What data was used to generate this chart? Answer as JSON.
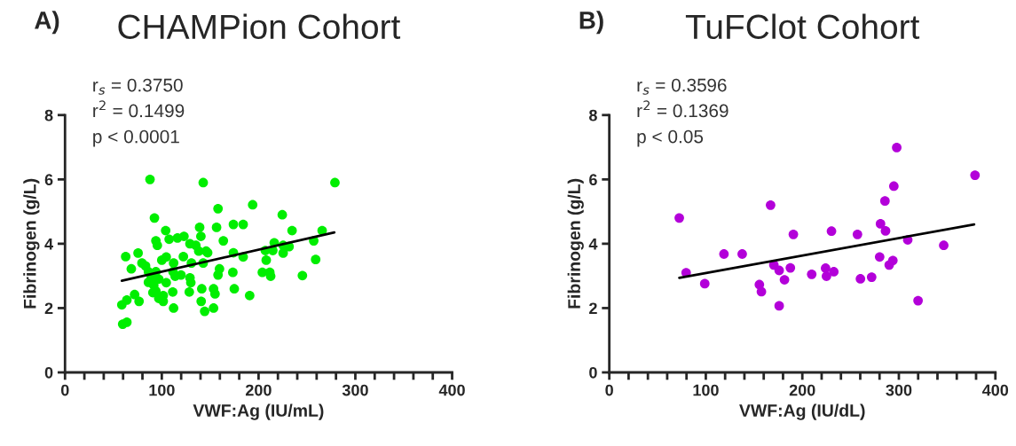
{
  "chart_data": [
    {
      "type": "scatter",
      "title": "CHAMPion Cohort",
      "xlabel": "VWF:Ag (IU/mL)",
      "ylabel": "Fibrinogen (g/L)",
      "annotations": [
        "A)",
        "r$_{s}$ = 0.3750",
        "r$^{2}$ = 0.1499",
        "p < 0.0001"
      ],
      "xlim": [
        0,
        400
      ],
      "ylim": [
        0,
        8
      ],
      "xticks": [
        0,
        {
          "value": 20,
          "label": null
        },
        {
          "value": 40,
          "label": null
        },
        {
          "value": 60,
          "label": null
        },
        {
          "value": 80,
          "label": null
        },
        100,
        {
          "value": 120,
          "label": null
        },
        {
          "value": 140,
          "label": null
        },
        {
          "value": 160,
          "label": null
        },
        {
          "value": 180,
          "label": null
        },
        200,
        {
          "value": 220,
          "label": null
        },
        {
          "value": 240,
          "label": null
        },
        {
          "value": 260,
          "label": null
        },
        {
          "value": 280,
          "label": null
        },
        300,
        {
          "value": 320,
          "label": null
        },
        {
          "value": 340,
          "label": null
        },
        {
          "value": 360,
          "label": null
        },
        {
          "value": 380,
          "label": null
        },
        400
      ],
      "yticks": [
        0,
        2,
        4,
        6,
        8
      ],
      "grid": false,
      "legend": false,
      "series": [
        {
          "marker": "circle",
          "color": "#00ee00",
          "x": [
            87.8,
            142.8,
            278.9,
            193.9,
            158.1,
            92.4,
            224.5,
            174.0,
            184.1,
            156.6,
            139.1,
            234.6,
            265.7,
            104.0,
            122.9,
            116.2,
            107.6,
            93.9,
            95.4,
            163.6,
            129.1,
            140.4,
            138.2,
            145.8,
            216.2,
            207.0,
            214.7,
            225.4,
            231.5,
            257.0,
            225.4,
            174.0,
            184.1,
            207.9,
            259.0,
            62.7,
            75.5,
            122.3,
            79.5,
            83.2,
            68.5,
            100.0,
            104.6,
            112.2,
            130.6,
            142.8,
            159.6,
            158.1,
            173.4,
            203.9,
            211.6,
            212.5,
            245.3,
            86.2,
            93.9,
            89.2,
            96.9,
            86.2,
            104.6,
            113.8,
            119.8,
            129.1,
            130.0,
            111.6,
            91.7,
            93.9,
            90.8,
            101.5,
            96.9,
            101.5,
            111.3,
            128.4,
            141.3,
            153.5,
            155.0,
            174.9,
            190.8,
            140.7,
            153.5,
            144.3,
            112.2,
            71.9,
            76.5,
            63.9,
            58.7,
            63.9,
            59.6,
            135.2,
            147.4
          ],
          "values": [
            6.0,
            5.9,
            5.9,
            5.21,
            5.09,
            4.8,
            4.9,
            4.6,
            4.6,
            4.51,
            4.51,
            4.41,
            4.41,
            4.41,
            4.23,
            4.18,
            4.14,
            4.09,
            3.95,
            4.09,
            4.0,
            4.23,
            3.77,
            3.77,
            4.03,
            3.79,
            3.79,
            3.95,
            3.91,
            4.09,
            3.71,
            3.72,
            3.59,
            3.49,
            3.51,
            3.6,
            3.71,
            3.6,
            3.4,
            3.31,
            3.22,
            3.49,
            3.59,
            3.4,
            3.4,
            3.4,
            3.22,
            3.03,
            3.11,
            3.11,
            3.11,
            2.99,
            3.01,
            3.13,
            3.13,
            2.94,
            2.9,
            2.8,
            2.79,
            2.99,
            3.03,
            2.94,
            2.79,
            3.13,
            2.71,
            2.53,
            2.48,
            2.39,
            2.3,
            2.21,
            2.5,
            2.5,
            2.6,
            2.6,
            2.44,
            2.6,
            2.39,
            2.21,
            2.0,
            1.9,
            2.0,
            2.42,
            2.21,
            2.25,
            2.1,
            1.56,
            1.5,
            3.95,
            3.72
          ]
        },
        {
          "type": "line",
          "color": "#000000",
          "x": [
            58.7,
            278.3
          ],
          "values": [
            2.85,
            4.35
          ]
        }
      ]
    },
    {
      "type": "scatter",
      "title": "TuFClot Cohort",
      "xlabel": "VWF:Ag (IU/dL)",
      "ylabel": "Fibrinogen (g/L)",
      "annotations": [
        "B)",
        "r$_{s}$ = 0.3596",
        "r$^{2}$ = 0.1369",
        "p < 0.05"
      ],
      "xlim": [
        0,
        400
      ],
      "ylim": [
        0,
        8
      ],
      "xticks": [
        0,
        {
          "value": 20,
          "label": null
        },
        {
          "value": 40,
          "label": null
        },
        {
          "value": 60,
          "label": null
        },
        {
          "value": 80,
          "label": null
        },
        100,
        {
          "value": 120,
          "label": null
        },
        {
          "value": 140,
          "label": null
        },
        {
          "value": 160,
          "label": null
        },
        {
          "value": 180,
          "label": null
        },
        200,
        {
          "value": 220,
          "label": null
        },
        {
          "value": 240,
          "label": null
        },
        {
          "value": 260,
          "label": null
        },
        {
          "value": 280,
          "label": null
        },
        300,
        {
          "value": 320,
          "label": null
        },
        {
          "value": 340,
          "label": null
        },
        {
          "value": 360,
          "label": null
        },
        {
          "value": 380,
          "label": null
        },
        400
      ],
      "yticks": [
        0,
        2,
        4,
        6,
        8
      ],
      "grid": false,
      "legend": false,
      "series": [
        {
          "marker": "circle",
          "color": "#b300d9",
          "x": [
            72.5,
            79.6,
            98.9,
            118.8,
            137.7,
            155.5,
            157.6,
            167.1,
            170.5,
            176.0,
            176.0,
            181.5,
            187.6,
            190.7,
            209.7,
            224.1,
            225.0,
            232.6,
            230.2,
            257.1,
            260.2,
            271.8,
            280.1,
            281.0,
            286.2,
            285.6,
            290.0,
            293.8,
            294.8,
            297.8,
            309.2,
            319.9,
            346.5,
            378.9
          ],
          "values": [
            4.8,
            3.1,
            2.76,
            3.68,
            3.68,
            2.73,
            2.51,
            5.2,
            3.34,
            3.17,
            2.07,
            2.88,
            3.25,
            4.29,
            3.05,
            3.24,
            2.99,
            3.13,
            4.39,
            4.29,
            2.91,
            2.96,
            3.59,
            4.62,
            4.4,
            5.33,
            3.34,
            3.48,
            5.79,
            6.99,
            4.12,
            2.23,
            3.95,
            6.13
          ]
        },
        {
          "type": "line",
          "color": "#000000",
          "x": [
            72.5,
            378.0
          ],
          "values": [
            2.94,
            4.6
          ]
        }
      ]
    }
  ]
}
